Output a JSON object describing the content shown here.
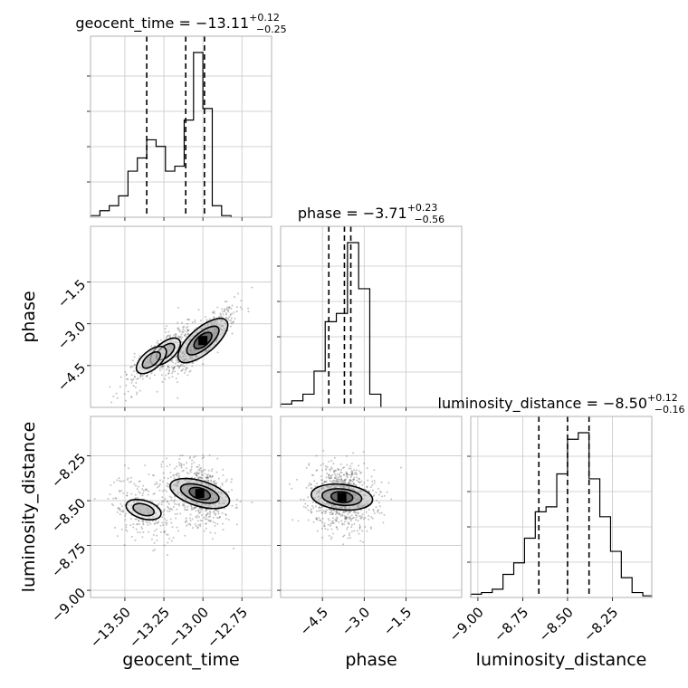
{
  "chart_data": {
    "type": "corner",
    "parameters": [
      "geocent_time",
      "phase",
      "luminosity_distance"
    ],
    "titles": {
      "geocent_time": {
        "label": "geocent_time",
        "median": "−13.11",
        "plus": "+0.12",
        "minus": "−0.25"
      },
      "phase": {
        "label": "phase",
        "median": "−3.71",
        "plus": "+0.23",
        "minus": "−0.56"
      },
      "luminosity_distance": {
        "label": "luminosity_distance",
        "median": "−8.50",
        "plus": "+0.12",
        "minus": "−0.16"
      }
    },
    "axes": {
      "geocent_time": {
        "range": [
          -13.72,
          -12.56
        ],
        "ticks": [
          -13.5,
          -13.25,
          -13.0,
          -12.75
        ],
        "tick_labels": [
          "−13.50",
          "−13.25",
          "−13.00",
          "−12.75"
        ]
      },
      "phase": {
        "range": [
          -6.0,
          0.5
        ],
        "ticks": [
          -4.5,
          -3.0,
          -1.5
        ],
        "tick_labels": [
          "−4.5",
          "−3.0",
          "−1.5"
        ]
      },
      "luminosity_distance": {
        "range": [
          -9.04,
          -8.03
        ],
        "ticks": [
          -9.0,
          -8.75,
          -8.5,
          -8.25
        ],
        "tick_labels": [
          "−9.00",
          "−8.75",
          "−8.50",
          "−8.25"
        ]
      }
    },
    "marginals": {
      "geocent_time": {
        "bin_edges": [
          -13.72,
          -13.66,
          -13.6,
          -13.54,
          -13.48,
          -13.42,
          -13.36,
          -13.3,
          -13.24,
          -13.18,
          -13.12,
          -13.06,
          -13.0,
          -12.94,
          -12.88,
          -12.82
        ],
        "counts": [
          0.01,
          0.04,
          0.07,
          0.13,
          0.28,
          0.36,
          0.47,
          0.43,
          0.28,
          0.31,
          0.59,
          1.0,
          0.66,
          0.07,
          0.01
        ],
        "quantiles": [
          -13.36,
          -13.11,
          -12.99
        ]
      },
      "phase": {
        "bin_edges": [
          -6.0,
          -5.6,
          -5.2,
          -4.8,
          -4.4,
          -4.0,
          -3.6,
          -3.2,
          -2.8,
          -2.4
        ],
        "counts": [
          0.02,
          0.04,
          0.08,
          0.22,
          0.52,
          0.57,
          1.0,
          0.72,
          0.08
        ],
        "quantiles": [
          -4.27,
          -3.71,
          -3.48
        ]
      },
      "luminosity_distance": {
        "bin_edges": [
          -9.04,
          -8.98,
          -8.92,
          -8.86,
          -8.8,
          -8.74,
          -8.68,
          -8.62,
          -8.56,
          -8.5,
          -8.44,
          -8.38,
          -8.32,
          -8.26,
          -8.2,
          -8.14,
          -8.08,
          -8.03
        ],
        "counts": [
          0.02,
          0.03,
          0.05,
          0.14,
          0.21,
          0.36,
          0.52,
          0.55,
          0.75,
          0.96,
          1.0,
          0.72,
          0.49,
          0.28,
          0.12,
          0.03,
          0.01
        ],
        "quantiles": [
          -8.66,
          -8.5,
          -8.38
        ]
      }
    },
    "joint_2d": [
      {
        "x": "geocent_time",
        "y": "phase",
        "correlation": 0.85,
        "peaks": [
          {
            "x": -13.0,
            "y": -3.6,
            "weight": 1.0
          },
          {
            "x": -13.24,
            "y": -4.0,
            "weight": 0.35
          },
          {
            "x": -13.33,
            "y": -4.3,
            "weight": 0.25
          }
        ]
      },
      {
        "x": "geocent_time",
        "y": "luminosity_distance",
        "correlation": -0.3,
        "peaks": [
          {
            "x": -13.02,
            "y": -8.46,
            "weight": 1.0
          },
          {
            "x": -13.38,
            "y": -8.55,
            "weight": 0.45
          }
        ]
      },
      {
        "x": "phase",
        "y": "luminosity_distance",
        "correlation": -0.1,
        "peaks": [
          {
            "x": -3.8,
            "y": -8.48,
            "weight": 1.0
          }
        ]
      }
    ],
    "grid": true,
    "legend": "none"
  }
}
